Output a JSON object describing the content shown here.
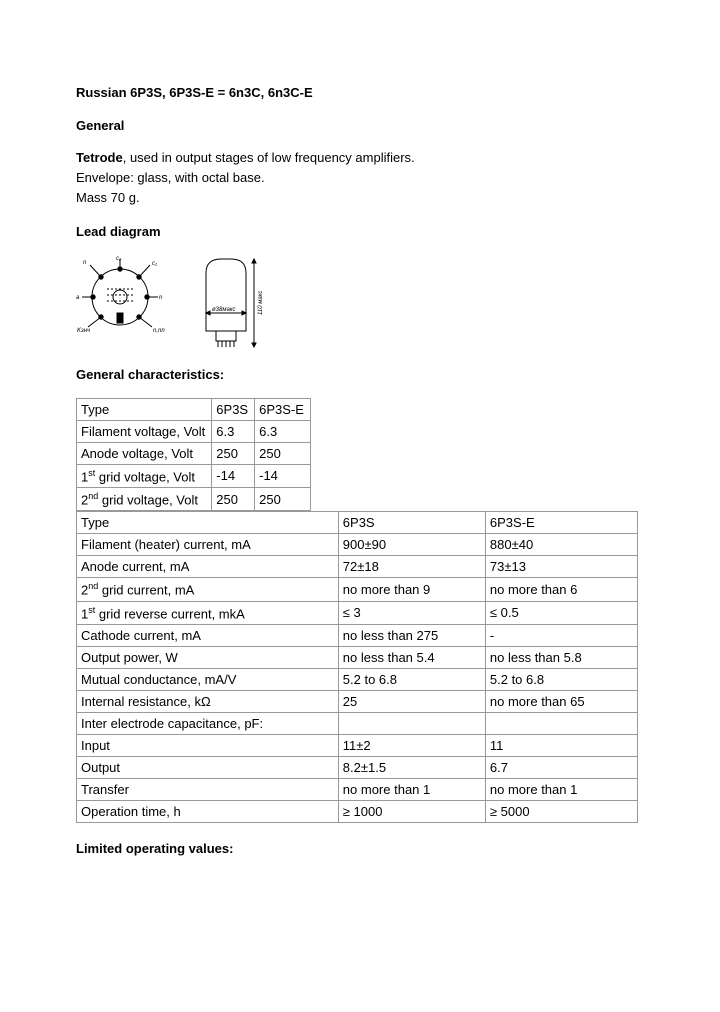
{
  "title": "Russian 6P3S, 6P3S-E = 6n3C, 6n3C-E",
  "headings": {
    "general": "General",
    "lead_diagram": "Lead diagram",
    "gen_char": "General characteristics:",
    "limited": "Limited operating values:"
  },
  "general_text": {
    "l1a": "Tetrode",
    "l1b": ", used in output stages of low frequency amplifiers.",
    "l2": "Envelope: glass, with octal base.",
    "l3": "Mass 70 g."
  },
  "table1": {
    "columns": [
      "Type",
      "6P3S",
      "6P3S-E"
    ],
    "rows": [
      [
        "Filament voltage, Volt",
        "6.3",
        "6.3"
      ],
      [
        "Anode voltage, Volt",
        "250",
        "250"
      ],
      [
        "1<sup>st</sup> grid voltage, Volt",
        "-14",
        "-14"
      ],
      [
        "2<sup>nd</sup> grid voltage, Volt",
        "250",
        "250"
      ]
    ]
  },
  "table2": {
    "columns": [
      "Type",
      "6P3S",
      "6P3S-E"
    ],
    "rows": [
      [
        "Filament (heater) current, mA",
        "900±90",
        "880±40"
      ],
      [
        "Anode current, mA",
        "72±18",
        "73±13"
      ],
      [
        "2<sup>nd</sup> grid current, mA",
        "no more than 9",
        "no more than 6"
      ],
      [
        "1<sup>st</sup> grid reverse current, mkA",
        "≤ 3",
        "≤ 0.5"
      ],
      [
        "Cathode current, mA",
        "no less than 275",
        "-"
      ],
      [
        "Output power, W",
        "no less than 5.4",
        "no less than 5.8"
      ],
      [
        "Mutual conductance, mA/V",
        "5.2 to 6.8",
        "5.2 to 6.8"
      ],
      [
        "Internal resistance, kΩ",
        "25",
        "no more than 65"
      ],
      [
        "Inter electrode capacitance, pF:",
        "",
        ""
      ],
      [
        "Input",
        "11±2",
        "11"
      ],
      [
        "Output",
        "8.2±1.5",
        "6.7"
      ],
      [
        "Transfer",
        "no more than 1",
        "no more than 1"
      ],
      [
        "Operation time, h",
        "≥ 1000",
        "≥ 5000"
      ]
    ]
  },
  "diagram": {
    "tube_label1": "ø38макс",
    "tube_label2": "110 макс"
  }
}
